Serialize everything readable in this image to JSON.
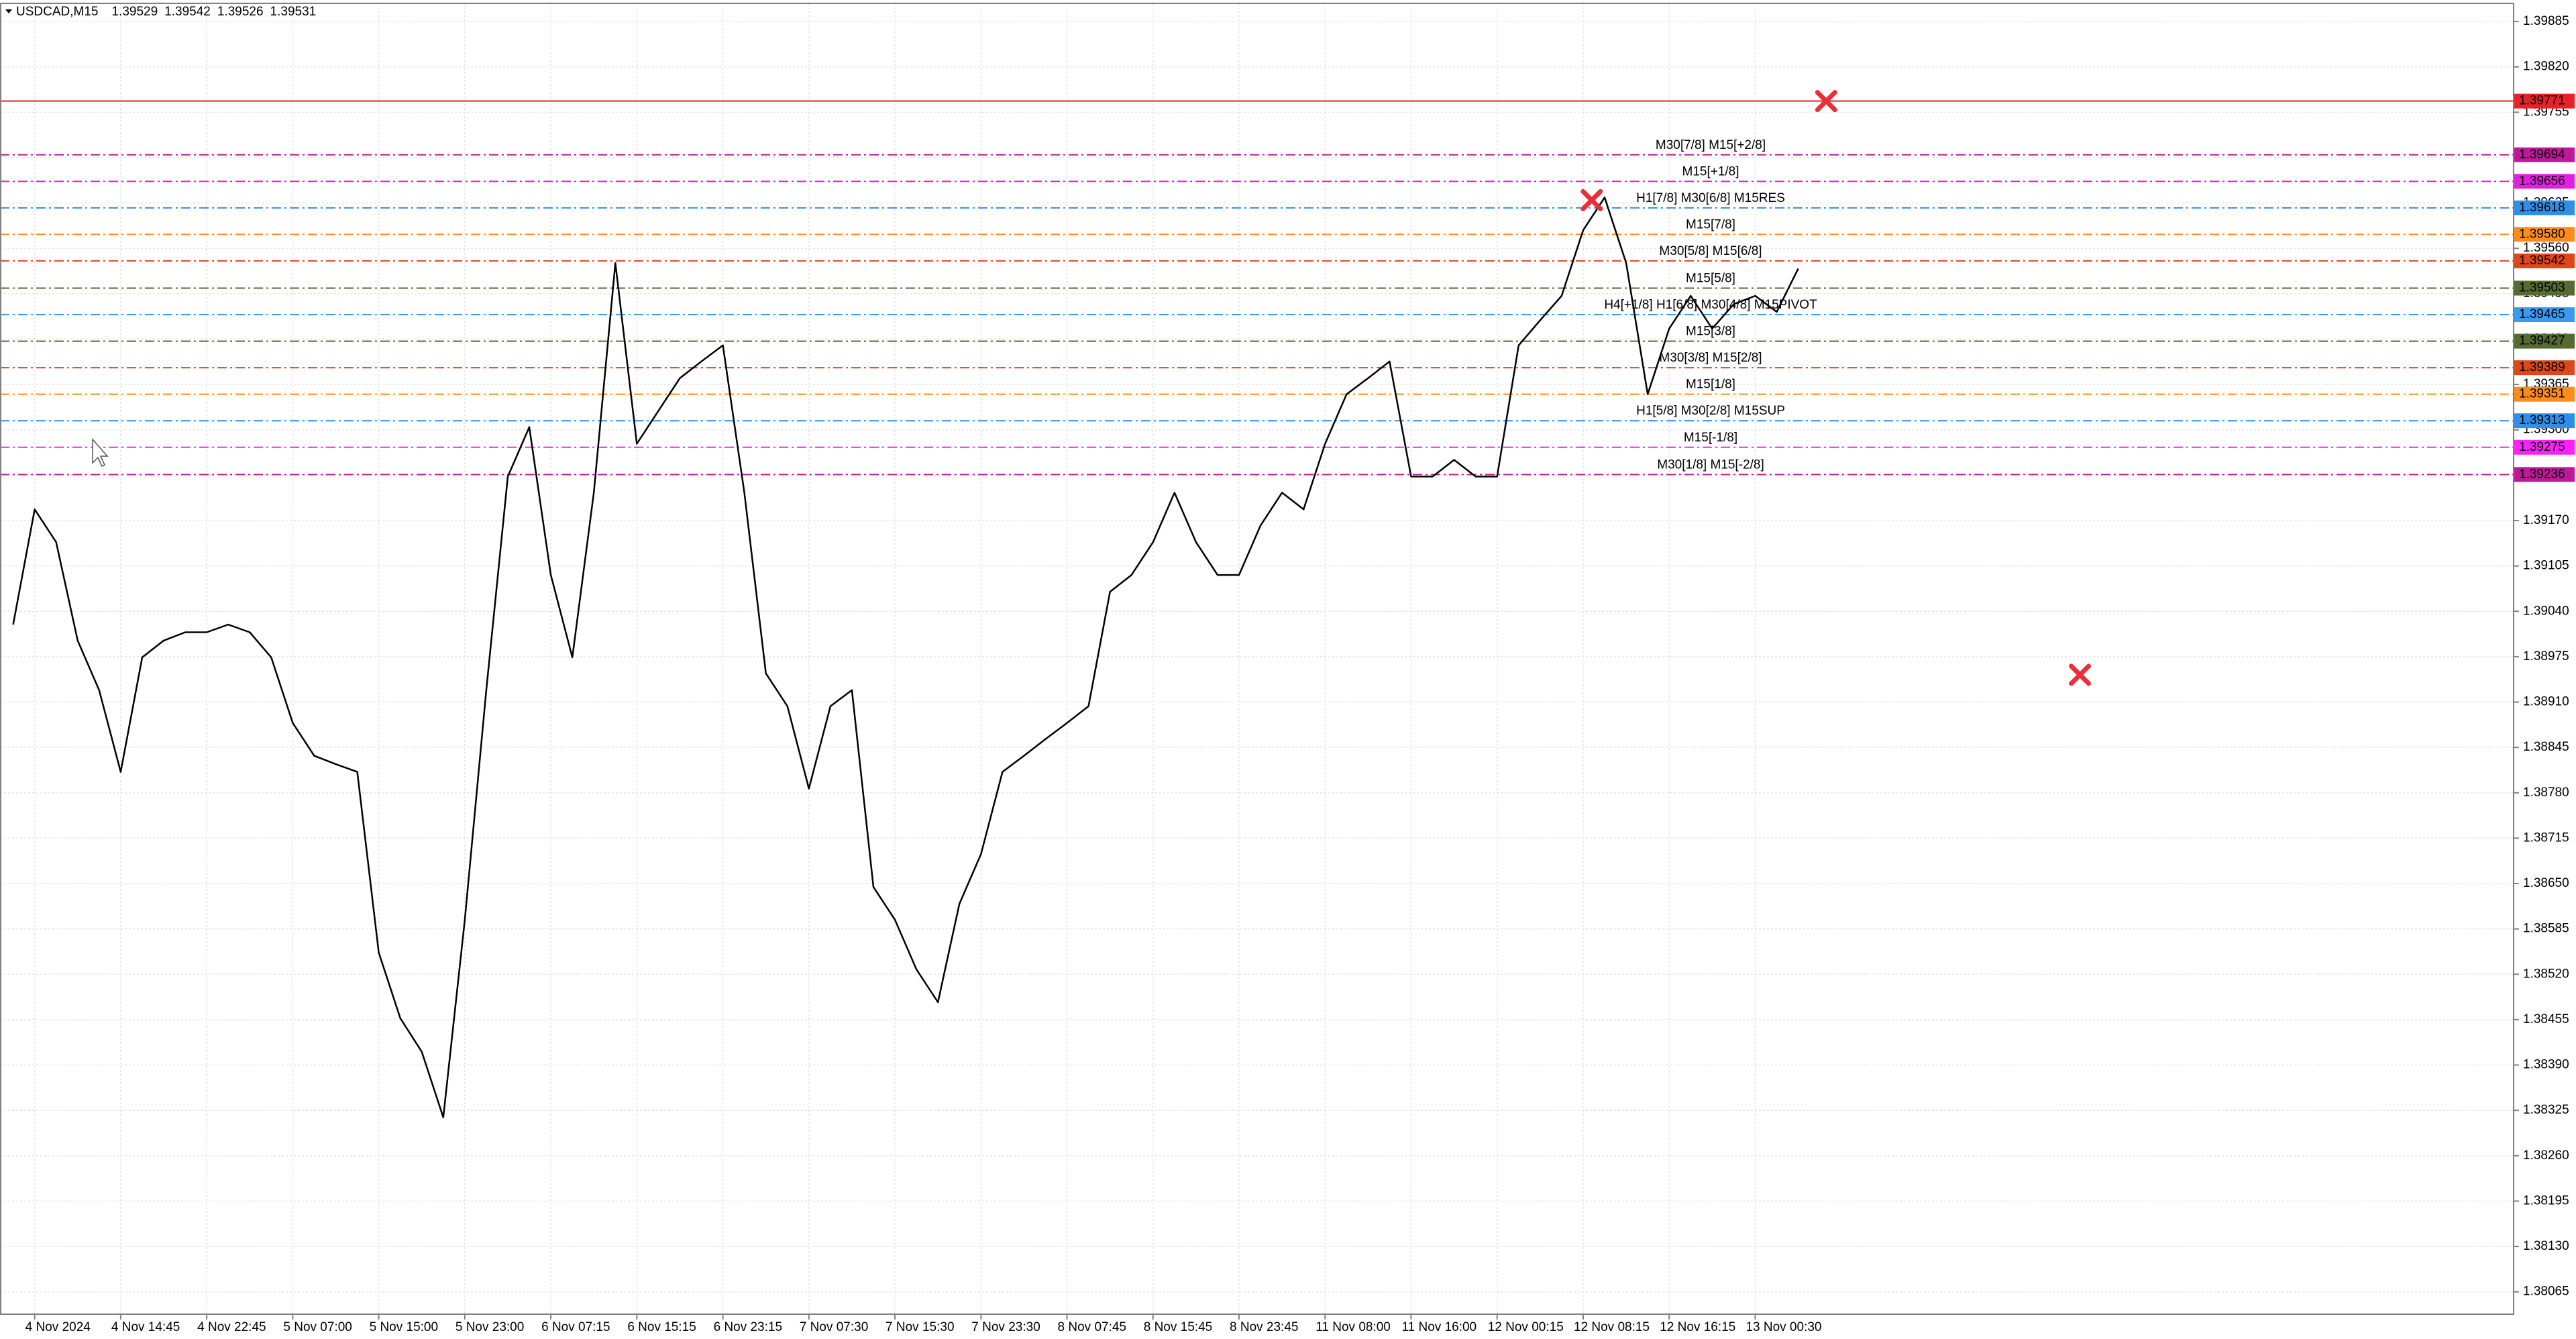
{
  "chart_data": {
    "type": "line",
    "title": "USDCAD,M15",
    "quote": [
      1.39529,
      1.39542,
      1.39526,
      1.39531
    ],
    "color": "#000000",
    "grid": true,
    "categories": [
      null,
      "4 Nov 2024",
      null,
      null,
      null,
      "4 Nov 14:45",
      null,
      null,
      null,
      "4 Nov 22:45",
      null,
      null,
      null,
      "5 Nov 07:00",
      null,
      null,
      null,
      "5 Nov 15:00",
      null,
      null,
      null,
      "5 Nov 23:00",
      null,
      null,
      null,
      "6 Nov 07:15",
      null,
      null,
      null,
      "6 Nov 15:15",
      null,
      null,
      null,
      "6 Nov 23:15",
      null,
      null,
      null,
      "7 Nov 07:30",
      null,
      null,
      null,
      "7 Nov 15:30",
      null,
      null,
      null,
      "7 Nov 23:30",
      null,
      null,
      null,
      "8 Nov 07:45",
      null,
      null,
      null,
      "8 Nov 15:45",
      null,
      null,
      null,
      "8 Nov 23:45",
      null,
      null,
      null,
      "11 Nov 08:00",
      null,
      null,
      null,
      "11 Nov 16:00",
      null,
      null,
      null,
      "12 Nov 00:15",
      null,
      null,
      null,
      "12 Nov 08:15",
      null,
      null,
      null,
      "12 Nov 16:15",
      null,
      null,
      null,
      "13 Nov 00:30",
      null,
      null
    ],
    "values": [
      1.39021,
      1.39186,
      1.39139,
      1.38998,
      1.38927,
      1.3881,
      1.38974,
      1.38998,
      1.3901,
      1.3901,
      1.39021,
      1.3901,
      1.38974,
      1.3888,
      1.38833,
      1.38821,
      1.3881,
      1.38551,
      1.38457,
      1.38409,
      1.38315,
      1.38598,
      1.38927,
      1.39233,
      1.39304,
      1.39092,
      1.38974,
      1.3921,
      1.39539,
      1.3928,
      1.39327,
      1.39374,
      1.39398,
      1.39421,
      1.3921,
      1.38951,
      1.38904,
      1.38786,
      1.38904,
      1.38927,
      1.38645,
      1.38598,
      1.38527,
      1.3848,
      1.38621,
      1.38692,
      1.3881,
      1.38833,
      1.38857,
      1.3888,
      1.38904,
      1.39068,
      1.39092,
      1.39139,
      1.3921,
      1.39139,
      1.39092,
      1.39092,
      1.39163,
      1.3921,
      1.39186,
      1.3928,
      1.39351,
      1.39374,
      1.39398,
      1.39233,
      1.39233,
      1.39257,
      1.39233,
      1.39233,
      1.39421,
      1.39457,
      1.39492,
      1.39586,
      1.39633,
      1.39539,
      1.39351,
      1.39445,
      1.39492,
      1.39445,
      1.3948,
      1.39492,
      1.39469,
      1.39531
    ],
    "ylim": [
      1.38033,
      1.39911
    ],
    "yticks": [
      1.39885,
      {
        "value": 1.3982,
        "label": "1.39820"
      },
      1.39755,
      {
        "value": 1.3969,
        "label": "1.39690"
      },
      1.39625,
      {
        "value": 1.3956,
        "label": "1.39560"
      },
      1.39495,
      {
        "value": 1.3943,
        "label": "1.39430"
      },
      1.39365,
      {
        "value": 1.393,
        "label": "1.39300"
      },
      1.39235,
      {
        "value": 1.3917,
        "label": "1.39170"
      },
      1.39105,
      {
        "value": 1.3904,
        "label": "1.39040"
      },
      1.38975,
      {
        "value": 1.3891,
        "label": "1.38910"
      },
      1.38845,
      {
        "value": 1.3878,
        "label": "1.38780"
      },
      1.38715,
      {
        "value": 1.3865,
        "label": "1.38650"
      },
      1.38585,
      {
        "value": 1.3852,
        "label": "1.38520"
      },
      1.38455,
      {
        "value": 1.3839,
        "label": "1.38390"
      },
      1.38325,
      {
        "value": 1.3826,
        "label": "1.38260"
      },
      1.38195,
      {
        "value": 1.3813,
        "label": "1.38130"
      },
      1.38065
    ],
    "levels": {
      "values": [
        1.39771,
        1.39694,
        1.39656,
        1.39618,
        1.3958,
        1.39542,
        1.39503,
        1.39465,
        1.39427,
        1.39389,
        1.39351,
        1.39313,
        1.39275,
        1.39236
      ],
      "value_labels": [
        "1.39771",
        "1.39694",
        "1.39656",
        "1.39618",
        "1.39580",
        "1.39542",
        "1.39503",
        "1.39465",
        "1.39427",
        "1.39389",
        "1.39351",
        "1.39313",
        "1.39275",
        "1.39236"
      ],
      "names": [
        null,
        "M30[7/8] M15[+2/8]",
        "M15[+1/8]",
        "H1[7/8] M30[6/8] M15RES",
        "M15[7/8]",
        "M30[5/8] M15[6/8]",
        "M15[5/8]",
        "H4[+1/8] H1[6/8] M30[4/8] M15PIVOT",
        "M15[3/8]",
        "M30[3/8] M15[2/8]",
        "M15[1/8]",
        "H1[5/8] M30[2/8] M15SUP",
        "M15[-1/8]",
        "M30[1/8] M15[-2/8]"
      ],
      "colors": [
        "#e8202a",
        "#c0189a",
        "#e020e0",
        "#2f8fe8",
        "#ff8c1a",
        "#e0461a",
        "#556b2f",
        "#3a9af0",
        "#556b2f",
        "#e0461a",
        "#ff8c1a",
        "#2f8fe8",
        "#ff20ff",
        "#c0189a"
      ]
    },
    "signals": {
      "x": [
        84.3,
        73.4,
        96.1
      ],
      "values": [
        1.39771,
        1.39629,
        1.38949
      ],
      "color": "#e8303a"
    }
  }
}
